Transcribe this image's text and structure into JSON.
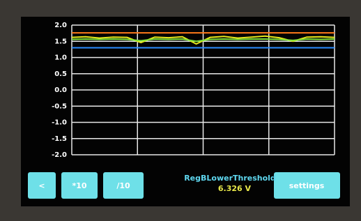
{
  "chart_data": {
    "type": "line",
    "categories": [
      null,
      null,
      null,
      null,
      null,
      null,
      null,
      null,
      null,
      null,
      null,
      null,
      null,
      null,
      null,
      null,
      null,
      null,
      null,
      null
    ],
    "series": [
      {
        "color": "#ff7a1a",
        "values": [
          1.76,
          1.76,
          1.76,
          1.76,
          1.76,
          1.76,
          1.76,
          1.76,
          1.76,
          1.76,
          1.76,
          1.76,
          1.76,
          1.76,
          1.76,
          1.76,
          1.76,
          1.76,
          1.76,
          1.76
        ]
      },
      {
        "color": "#e6e81c",
        "values": [
          1.62,
          1.64,
          1.6,
          1.63,
          1.62,
          1.46,
          1.63,
          1.61,
          1.64,
          1.42,
          1.62,
          1.65,
          1.6,
          1.63,
          1.66,
          1.61,
          1.5,
          1.63,
          1.64,
          1.62
        ]
      },
      {
        "color": "#7ee03a",
        "values": [
          1.56,
          1.57,
          1.56,
          1.57,
          1.56,
          1.52,
          1.57,
          1.56,
          1.57,
          1.5,
          1.56,
          1.57,
          1.56,
          1.57,
          1.57,
          1.56,
          1.53,
          1.57,
          1.56,
          1.57
        ]
      },
      {
        "color": "#2b8cff",
        "values": [
          1.3,
          1.3,
          1.3,
          1.3,
          1.3,
          1.3,
          1.3,
          1.3,
          1.3,
          1.3,
          1.3,
          1.3,
          1.3,
          1.3,
          1.3,
          1.3,
          1.3,
          1.3,
          1.3,
          1.3
        ]
      }
    ],
    "ylim": [
      -2,
      2
    ],
    "yticks": [
      {
        "value": 2,
        "label": "2.0"
      },
      {
        "value": 1.5,
        "label": "1.5"
      },
      {
        "value": 1,
        "label": "1.0"
      },
      {
        "value": 0.5,
        "label": "0.5"
      },
      {
        "value": 0,
        "label": "0.0"
      },
      {
        "value": -0.5,
        "label": "-0.5"
      },
      {
        "value": -1,
        "label": "-1.0"
      },
      {
        "value": -1.5,
        "label": "-1.5"
      },
      {
        "value": -2,
        "label": "-2.0"
      }
    ],
    "grid": true
  },
  "buttons": [
    "<",
    "*10",
    "/10",
    "settings"
  ],
  "status": {
    "label": "RegBLowerThreshold",
    "value": "6.326 V"
  }
}
